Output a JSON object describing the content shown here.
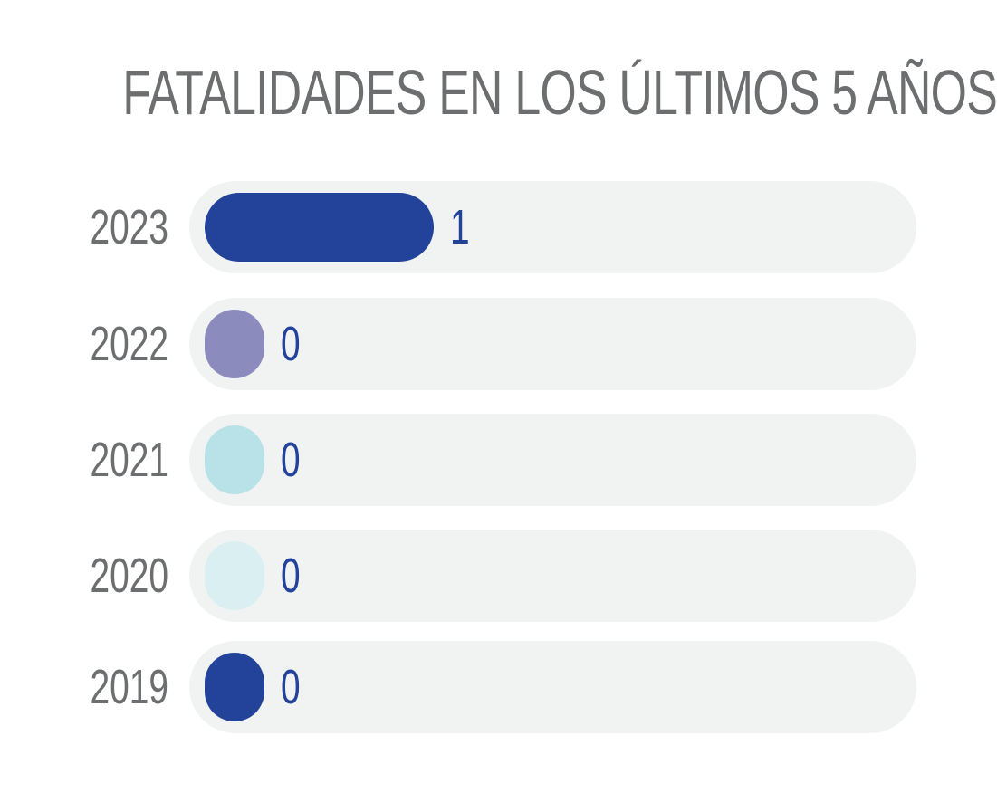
{
  "chart_data": {
    "type": "bar",
    "orientation": "horizontal",
    "title": "FATALIDADES EN LOS ÚLTIMOS 5 AÑOS",
    "categories": [
      "2023",
      "2022",
      "2021",
      "2020",
      "2019"
    ],
    "values": [
      1,
      0,
      0,
      0,
      0
    ],
    "value_labels": [
      "1",
      "0",
      "0",
      "0",
      "0"
    ],
    "bar_colors": [
      "#23439a",
      "#8b8bbd",
      "#b8e1e8",
      "#d9eff2",
      "#23439a"
    ],
    "track_color": "#f1f2f2",
    "label_color": "#6d6e70",
    "value_color": "#23439a",
    "xlim": [
      0,
      3.2
    ],
    "grid": false,
    "legend": "none"
  }
}
